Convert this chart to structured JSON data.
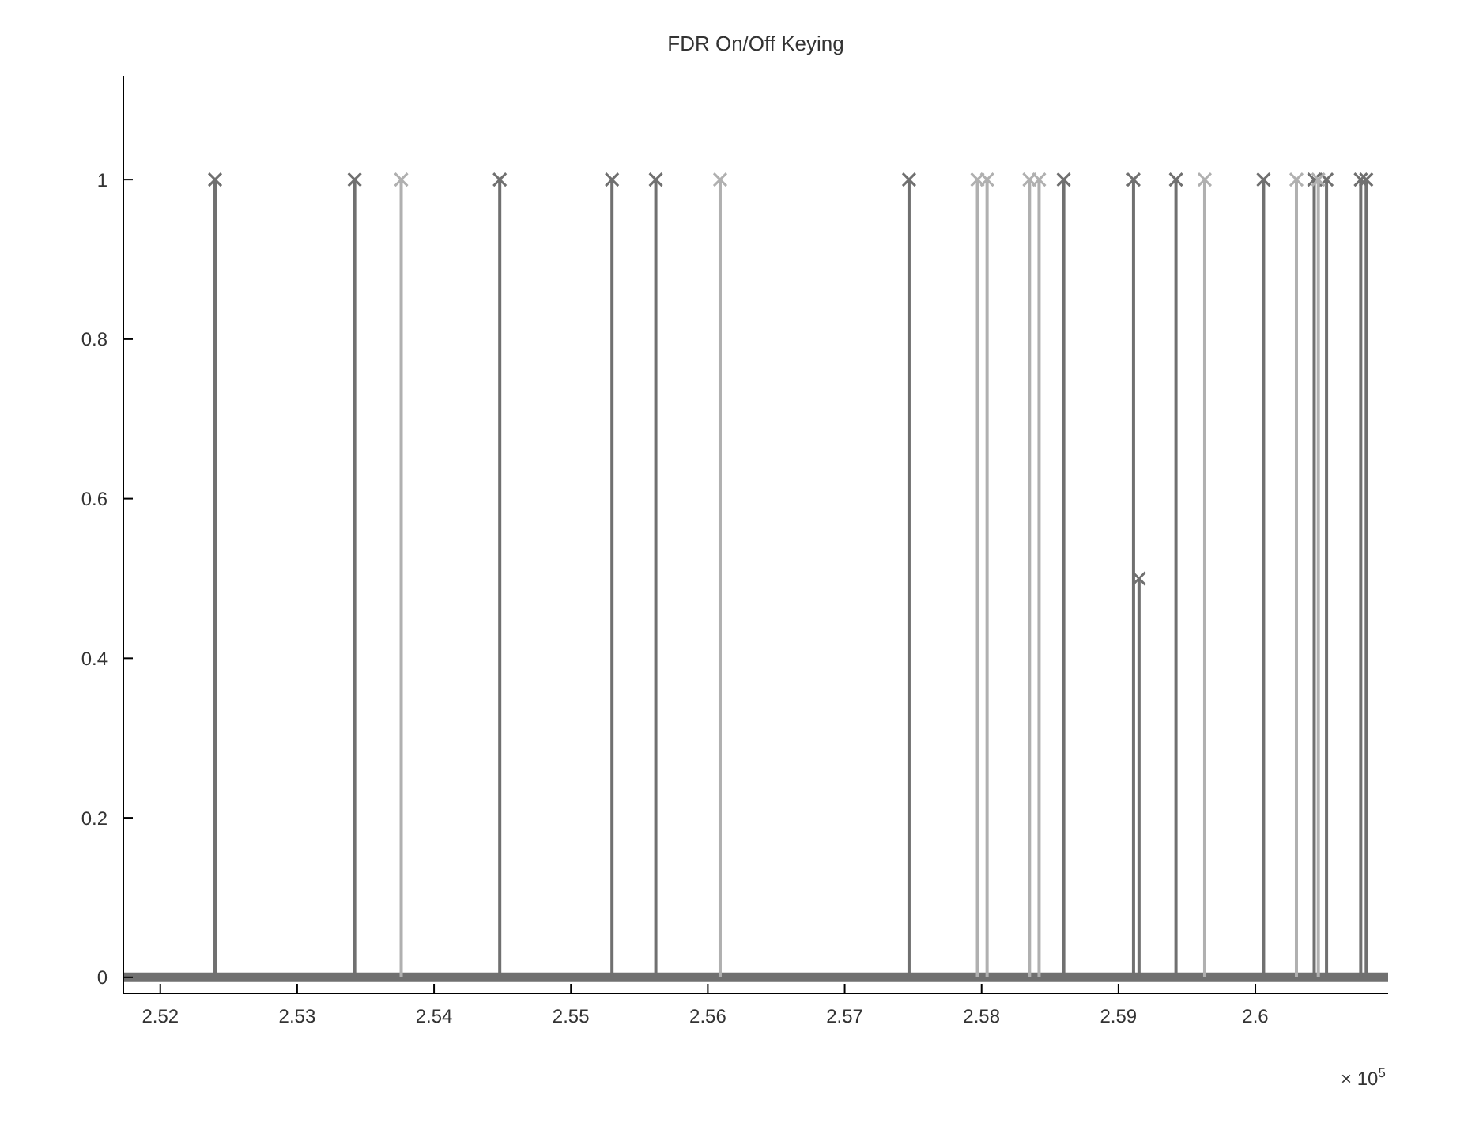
{
  "chart_data": {
    "type": "lollipop",
    "title": "FDR On/Off Keying",
    "marker": "cross",
    "annotations": [
      "× 10$^{5}$"
    ],
    "xlim": [
      2.5173,
      2.6097
    ],
    "xticks": [
      2.52,
      2.53,
      2.54,
      2.55,
      2.56,
      2.57,
      2.58,
      2.59,
      2.6
    ],
    "ylim": [
      -0.02,
      1.13
    ],
    "yticks": [
      0,
      0.2,
      0.4,
      0.6,
      0.8,
      1
    ],
    "ref_lines": [
      {
        "axis": "y",
        "value": 0,
        "color": "#707070"
      }
    ],
    "series": [
      {
        "color": "#707070",
        "x": [
          2.524,
          2.5342,
          2.5448,
          2.553,
          2.5562,
          2.5747,
          2.586,
          2.5911,
          2.5915,
          2.5942,
          2.6006,
          2.6043,
          2.6052,
          2.6077,
          2.6081
        ],
        "values": [
          1,
          1,
          1,
          1,
          1,
          1,
          1,
          1,
          0.5,
          1,
          1,
          1,
          1,
          1,
          1
        ]
      },
      {
        "color": "#b0b0b0",
        "x": [
          2.5376,
          2.5609,
          2.5797,
          2.5804,
          2.5835,
          2.5842,
          2.5963,
          2.603,
          2.6046
        ],
        "values": [
          1,
          1,
          1,
          1,
          1,
          1,
          1,
          1,
          1
        ]
      }
    ]
  }
}
